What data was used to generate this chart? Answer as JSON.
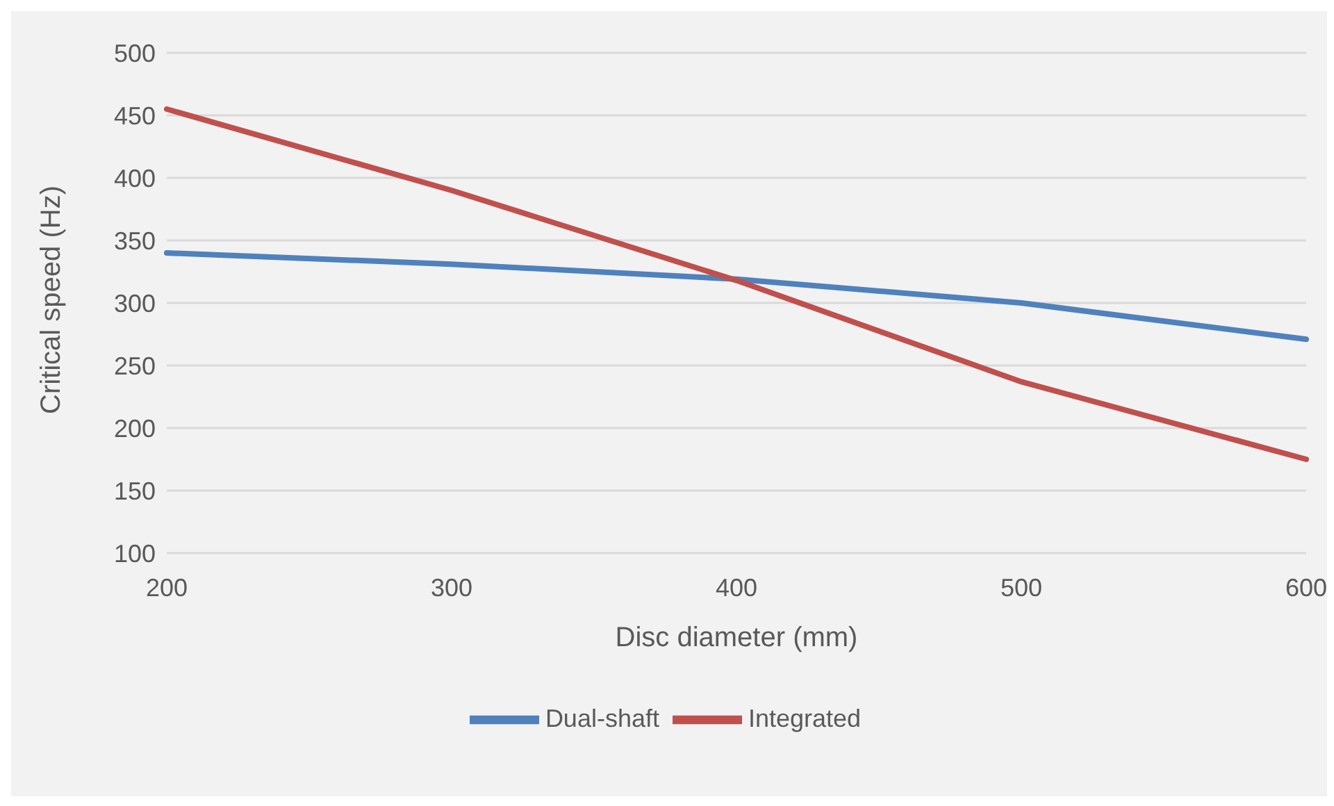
{
  "chart_data": {
    "type": "line",
    "xlabel": "Disc diameter (mm)",
    "ylabel": "Critical speed (Hz)",
    "categories": [
      "200",
      "300",
      "400",
      "500",
      "600"
    ],
    "series": [
      {
        "name": "Dual-shaft",
        "color": "#4f81bd",
        "values": [
          340,
          331,
          319,
          300,
          271
        ]
      },
      {
        "name": "Integrated",
        "color": "#c0504d",
        "values": [
          455,
          390,
          318,
          237,
          175
        ]
      }
    ],
    "ylim": [
      100,
      500
    ],
    "yticks": [
      100,
      150,
      200,
      250,
      300,
      350,
      400,
      450,
      500
    ],
    "grid": "y",
    "legend": "bottom",
    "marker": "none",
    "line_style": "solid"
  }
}
